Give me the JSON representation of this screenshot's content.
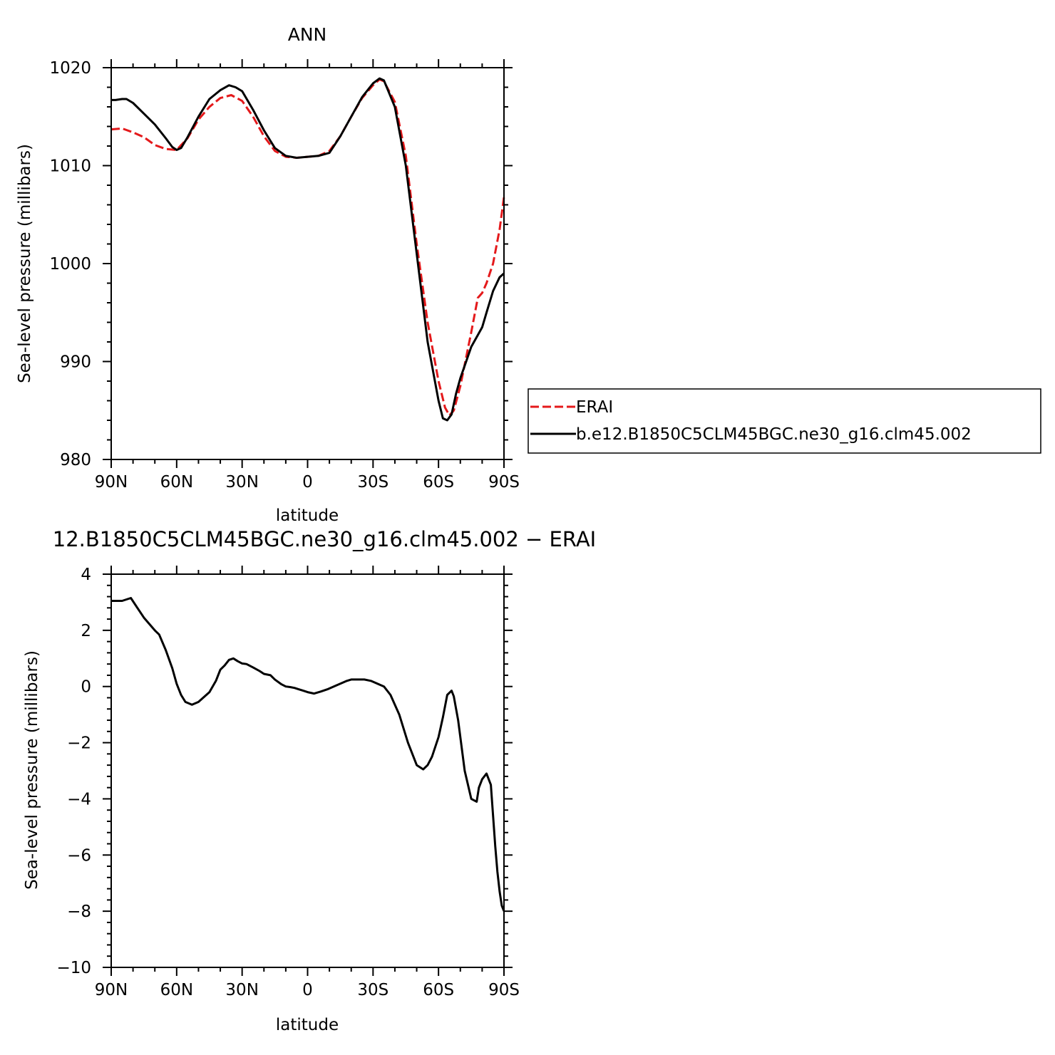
{
  "chart_data": [
    {
      "type": "line",
      "title": "ANN",
      "xlabel": "latitude",
      "ylabel": "Sea-level pressure (millibars)",
      "xlim": [
        90,
        -90
      ],
      "ylim": [
        980,
        1020
      ],
      "xticks": [
        90,
        60,
        30,
        0,
        -30,
        -60,
        -90
      ],
      "xtick_labels": [
        "90N",
        "60N",
        "30N",
        "0",
        "30S",
        "60S",
        "90S"
      ],
      "yticks": [
        980,
        990,
        1000,
        1010,
        1020
      ],
      "ytick_labels": [
        "980",
        "990",
        "1000",
        "1010",
        "1020"
      ],
      "legend": "right",
      "series": [
        {
          "name": "ERAI",
          "color": "#e4191b",
          "dash": "dashed",
          "x": [
            90,
            85,
            80,
            75,
            70,
            65,
            60,
            55,
            50,
            45,
            40,
            35,
            30,
            25,
            20,
            15,
            10,
            5,
            0,
            -5,
            -10,
            -15,
            -20,
            -25,
            -30,
            -33,
            -35,
            -40,
            -45,
            -50,
            -55,
            -60,
            -63,
            -65,
            -67,
            -70,
            -75,
            -78,
            -80,
            -82,
            -85,
            -88,
            -90
          ],
          "y": [
            1013.7,
            1013.8,
            1013.4,
            1012.9,
            1012.1,
            1011.7,
            1011.6,
            1012.8,
            1014.7,
            1016.0,
            1016.9,
            1017.2,
            1016.6,
            1015.0,
            1013.0,
            1011.5,
            1010.9,
            1010.8,
            1010.9,
            1011.0,
            1011.5,
            1013.0,
            1015.0,
            1016.9,
            1018.2,
            1018.8,
            1018.6,
            1016.5,
            1011.0,
            1002.0,
            994.0,
            988.0,
            985.3,
            984.5,
            985.0,
            987.5,
            993.0,
            996.5,
            997.0,
            998.0,
            1000.0,
            1003.5,
            1006.8
          ]
        },
        {
          "name": "b.e12.B1850C5CLM45BGC.ne30_g16.clm45.002",
          "color": "#000000",
          "dash": "solid",
          "x": [
            90,
            88,
            85,
            83,
            80,
            75,
            70,
            65,
            62,
            60,
            58,
            55,
            50,
            45,
            40,
            36,
            33,
            30,
            25,
            20,
            15,
            10,
            5,
            0,
            -5,
            -10,
            -15,
            -20,
            -25,
            -30,
            -33,
            -35,
            -40,
            -45,
            -50,
            -55,
            -60,
            -62,
            -64,
            -66,
            -68,
            -70,
            -75,
            -78,
            -80,
            -82,
            -85,
            -88,
            -90
          ],
          "y": [
            1016.7,
            1016.7,
            1016.8,
            1016.8,
            1016.4,
            1015.3,
            1014.2,
            1012.8,
            1011.9,
            1011.6,
            1011.8,
            1012.9,
            1015.0,
            1016.8,
            1017.7,
            1018.2,
            1018.0,
            1017.6,
            1015.7,
            1013.6,
            1011.8,
            1011.0,
            1010.8,
            1010.9,
            1011.0,
            1011.3,
            1013.0,
            1015.0,
            1017.0,
            1018.4,
            1018.9,
            1018.7,
            1016.0,
            1010.0,
            1001.0,
            992.0,
            986.0,
            984.2,
            984.0,
            984.6,
            986.7,
            988.3,
            991.5,
            992.7,
            993.5,
            995.0,
            997.2,
            998.6,
            999.0
          ]
        }
      ]
    },
    {
      "type": "line",
      "title": "12.B1850C5CLM45BGC.ne30_g16.clm45.002 − ERAI",
      "xlabel": "latitude",
      "ylabel": "Sea-level pressure (millibars)",
      "xlim": [
        90,
        -90
      ],
      "ylim": [
        -10,
        4
      ],
      "xticks": [
        90,
        60,
        30,
        0,
        -30,
        -60,
        -90
      ],
      "xtick_labels": [
        "90N",
        "60N",
        "30N",
        "0",
        "30S",
        "60S",
        "90S"
      ],
      "yticks": [
        -10,
        -8,
        -6,
        -4,
        -2,
        0,
        2,
        4
      ],
      "ytick_labels": [
        "−10",
        "−8",
        "−6",
        "−4",
        "−2",
        "0",
        "2",
        "4"
      ],
      "series": [
        {
          "color": "#000000",
          "dash": "solid",
          "x": [
            90,
            85,
            83,
            81,
            78,
            75,
            70,
            68,
            65,
            62,
            60,
            58,
            56,
            53,
            50,
            45,
            42,
            40,
            38,
            36,
            34,
            32,
            30,
            28,
            25,
            22,
            20,
            17,
            15,
            12,
            10,
            8,
            6,
            4,
            2,
            0,
            -3,
            -6,
            -9,
            -12,
            -15,
            -18,
            -20,
            -23,
            -26,
            -29,
            -32,
            -35,
            -38,
            -42,
            -46,
            -50,
            -53,
            -55,
            -57,
            -60,
            -62,
            -64,
            -66,
            -67,
            -69,
            -72,
            -75,
            -77.5,
            -78.5,
            -80,
            -82,
            -84,
            -85,
            -86,
            -87,
            -88,
            -89,
            -90
          ],
          "y": [
            3.05,
            3.05,
            3.1,
            3.15,
            2.8,
            2.45,
            2.0,
            1.85,
            1.3,
            0.65,
            0.1,
            -0.3,
            -0.55,
            -0.65,
            -0.55,
            -0.2,
            0.2,
            0.6,
            0.75,
            0.95,
            1.0,
            0.9,
            0.82,
            0.8,
            0.68,
            0.55,
            0.45,
            0.4,
            0.25,
            0.08,
            0.0,
            -0.02,
            -0.05,
            -0.1,
            -0.15,
            -0.2,
            -0.25,
            -0.18,
            -0.1,
            0.0,
            0.1,
            0.2,
            0.25,
            0.25,
            0.25,
            0.2,
            0.1,
            0.0,
            -0.3,
            -1.0,
            -2.0,
            -2.8,
            -2.95,
            -2.8,
            -2.5,
            -1.8,
            -1.1,
            -0.3,
            -0.15,
            -0.35,
            -1.2,
            -3.0,
            -4.0,
            -4.1,
            -3.6,
            -3.3,
            -3.1,
            -3.5,
            -4.6,
            -5.7,
            -6.6,
            -7.3,
            -7.8,
            -8.0
          ]
        }
      ]
    }
  ],
  "legend": {
    "items": [
      {
        "label": "ERAI"
      },
      {
        "label": "b.e12.B1850C5CLM45BGC.ne30_g16.clm45.002"
      }
    ]
  }
}
